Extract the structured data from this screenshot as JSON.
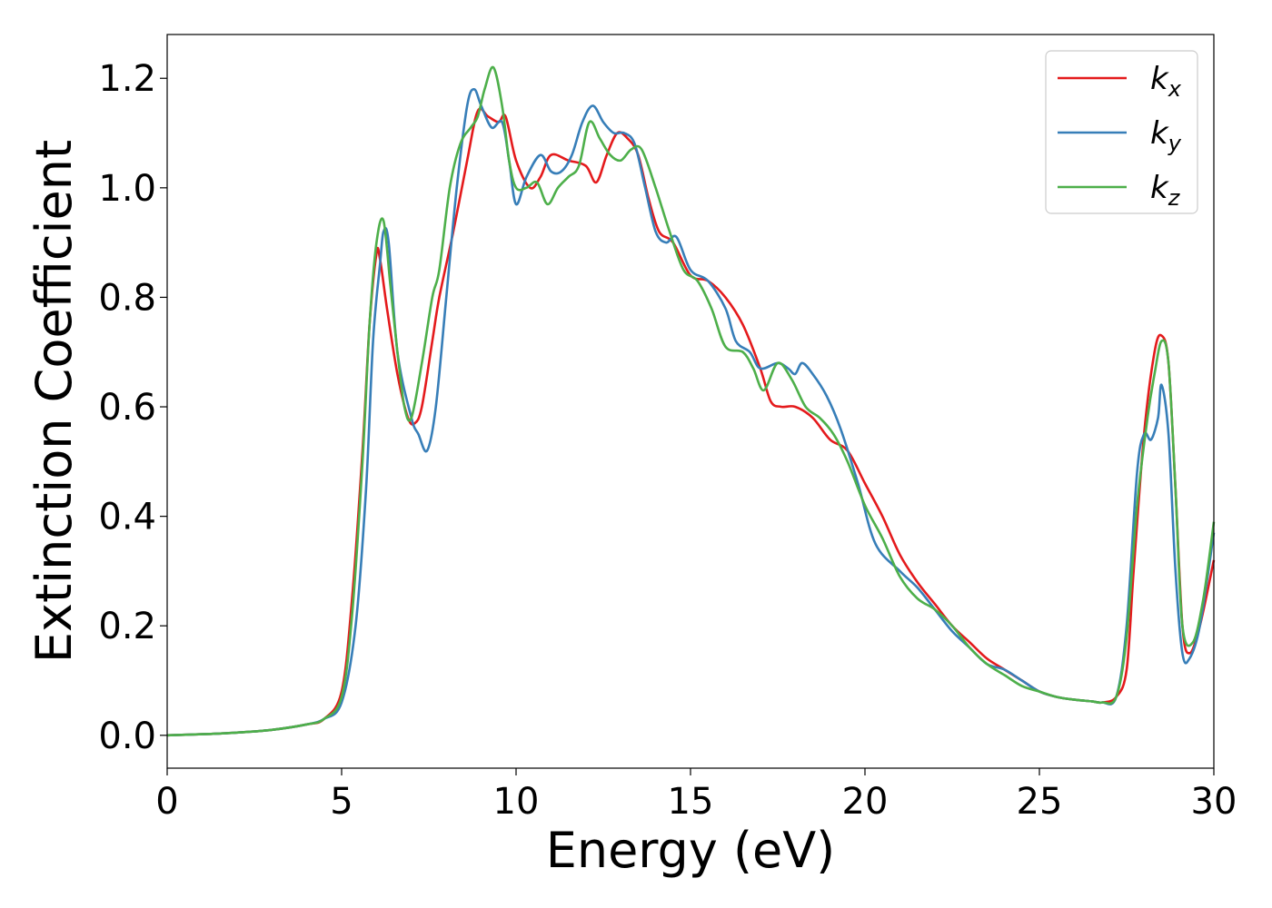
{
  "chart_data": {
    "type": "line",
    "xlabel": "Energy (eV)",
    "ylabel": "Extinction Coefficient",
    "xlim": [
      0,
      30
    ],
    "ylim": [
      -0.06,
      1.28
    ],
    "xticks": [
      0,
      5,
      10,
      15,
      20,
      25,
      30
    ],
    "yticks": [
      0.0,
      0.2,
      0.4,
      0.6,
      0.8,
      1.0,
      1.2
    ],
    "xtick_labels": [
      "0",
      "5",
      "10",
      "15",
      "20",
      "25",
      "30"
    ],
    "ytick_labels": [
      "0.0",
      "0.2",
      "0.4",
      "0.6",
      "0.8",
      "1.0",
      "1.2"
    ],
    "grid": false,
    "legend_position": "top-right",
    "series": [
      {
        "name": "k_x",
        "label_base": "k",
        "label_sub": "x",
        "color": "#e41a1c",
        "x": [
          0,
          1,
          2,
          3,
          4,
          4.5,
          5.0,
          5.3,
          5.6,
          5.8,
          6.0,
          6.1,
          6.3,
          6.6,
          6.9,
          7.1,
          7.3,
          7.6,
          7.8,
          8.2,
          8.6,
          8.9,
          9.2,
          9.5,
          9.7,
          10.0,
          10.4,
          10.7,
          11.0,
          11.5,
          12.0,
          12.3,
          12.6,
          12.9,
          13.2,
          13.5,
          13.8,
          14.1,
          14.5,
          15.0,
          15.5,
          16.0,
          16.5,
          17.0,
          17.3,
          17.6,
          18.0,
          18.5,
          19.0,
          19.5,
          20.0,
          20.5,
          21.0,
          21.5,
          22.0,
          22.5,
          23.0,
          23.5,
          24.0,
          24.5,
          25.0,
          25.5,
          26.0,
          26.5,
          26.8,
          27.2,
          27.5,
          27.7,
          28.0,
          28.3,
          28.5,
          28.7,
          28.9,
          29.1,
          29.3,
          29.6,
          30.0
        ],
        "values": [
          0.0,
          0.002,
          0.005,
          0.01,
          0.02,
          0.03,
          0.08,
          0.25,
          0.52,
          0.75,
          0.88,
          0.87,
          0.78,
          0.66,
          0.58,
          0.57,
          0.6,
          0.72,
          0.8,
          0.92,
          1.05,
          1.14,
          1.13,
          1.12,
          1.13,
          1.05,
          1.0,
          1.02,
          1.06,
          1.05,
          1.04,
          1.01,
          1.06,
          1.1,
          1.09,
          1.06,
          0.98,
          0.92,
          0.9,
          0.84,
          0.83,
          0.8,
          0.75,
          0.67,
          0.61,
          0.6,
          0.6,
          0.58,
          0.54,
          0.52,
          0.46,
          0.4,
          0.33,
          0.28,
          0.24,
          0.2,
          0.17,
          0.14,
          0.12,
          0.1,
          0.08,
          0.07,
          0.065,
          0.062,
          0.06,
          0.07,
          0.12,
          0.3,
          0.55,
          0.7,
          0.73,
          0.68,
          0.45,
          0.2,
          0.15,
          0.2,
          0.32
        ]
      },
      {
        "name": "k_y",
        "label_base": "k",
        "label_sub": "y",
        "color": "#377eb8",
        "x": [
          0,
          1,
          2,
          3,
          4,
          4.5,
          5.0,
          5.4,
          5.7,
          5.9,
          6.1,
          6.2,
          6.35,
          6.6,
          7.0,
          7.2,
          7.45,
          7.7,
          8.0,
          8.3,
          8.6,
          8.8,
          9.0,
          9.3,
          9.6,
          9.8,
          10.0,
          10.3,
          10.7,
          11.0,
          11.3,
          11.6,
          11.9,
          12.2,
          12.5,
          12.8,
          13.1,
          13.4,
          13.7,
          14.0,
          14.3,
          14.6,
          15.0,
          15.5,
          16.0,
          16.3,
          16.7,
          17.0,
          17.5,
          17.8,
          18.0,
          18.2,
          18.5,
          18.9,
          19.3,
          19.8,
          20.3,
          21.0,
          21.5,
          22.0,
          22.5,
          23.0,
          23.5,
          24.0,
          24.5,
          25.0,
          25.5,
          26.0,
          26.5,
          26.8,
          27.2,
          27.5,
          27.8,
          28.0,
          28.2,
          28.4,
          28.5,
          28.7,
          28.9,
          29.1,
          29.3,
          29.6,
          30.0
        ],
        "values": [
          0.0,
          0.002,
          0.005,
          0.01,
          0.02,
          0.03,
          0.06,
          0.2,
          0.45,
          0.72,
          0.86,
          0.92,
          0.9,
          0.7,
          0.58,
          0.55,
          0.52,
          0.6,
          0.8,
          1.0,
          1.15,
          1.18,
          1.15,
          1.11,
          1.12,
          1.05,
          0.97,
          1.02,
          1.06,
          1.03,
          1.03,
          1.06,
          1.12,
          1.15,
          1.12,
          1.1,
          1.1,
          1.08,
          1.0,
          0.92,
          0.9,
          0.91,
          0.85,
          0.83,
          0.78,
          0.72,
          0.7,
          0.67,
          0.68,
          0.67,
          0.66,
          0.68,
          0.66,
          0.62,
          0.56,
          0.46,
          0.35,
          0.3,
          0.27,
          0.23,
          0.19,
          0.16,
          0.13,
          0.12,
          0.1,
          0.08,
          0.07,
          0.065,
          0.062,
          0.06,
          0.07,
          0.2,
          0.48,
          0.55,
          0.54,
          0.58,
          0.64,
          0.55,
          0.3,
          0.15,
          0.14,
          0.2,
          0.37
        ]
      },
      {
        "name": "k_z",
        "label_base": "k",
        "label_sub": "z",
        "color": "#4daf4a",
        "x": [
          0,
          1,
          2,
          3,
          4,
          4.5,
          5.0,
          5.3,
          5.6,
          5.8,
          6.0,
          6.2,
          6.4,
          6.6,
          6.8,
          7.0,
          7.3,
          7.6,
          7.8,
          8.1,
          8.4,
          8.7,
          8.9,
          9.1,
          9.35,
          9.6,
          9.8,
          10.0,
          10.3,
          10.6,
          10.9,
          11.2,
          11.5,
          11.8,
          12.1,
          12.4,
          12.7,
          13.0,
          13.3,
          13.6,
          14.0,
          14.4,
          14.8,
          15.2,
          15.6,
          16.0,
          16.5,
          16.8,
          17.1,
          17.5,
          17.9,
          18.3,
          18.7,
          19.1,
          19.5,
          20.0,
          20.5,
          21.0,
          21.5,
          22.0,
          22.5,
          23.0,
          23.5,
          24.0,
          24.5,
          25.0,
          25.5,
          26.0,
          26.5,
          26.8,
          27.2,
          27.5,
          27.8,
          28.1,
          28.3,
          28.5,
          28.7,
          28.9,
          29.1,
          29.4,
          29.7,
          30.0
        ],
        "values": [
          0.0,
          0.002,
          0.005,
          0.01,
          0.02,
          0.03,
          0.07,
          0.22,
          0.5,
          0.75,
          0.9,
          0.94,
          0.82,
          0.7,
          0.6,
          0.58,
          0.68,
          0.8,
          0.85,
          1.0,
          1.08,
          1.11,
          1.13,
          1.18,
          1.22,
          1.15,
          1.05,
          1.0,
          1.0,
          1.01,
          0.97,
          1.0,
          1.02,
          1.04,
          1.12,
          1.09,
          1.06,
          1.05,
          1.07,
          1.07,
          1.0,
          0.92,
          0.85,
          0.83,
          0.78,
          0.71,
          0.7,
          0.67,
          0.63,
          0.68,
          0.65,
          0.6,
          0.58,
          0.55,
          0.5,
          0.42,
          0.36,
          0.29,
          0.25,
          0.23,
          0.2,
          0.16,
          0.13,
          0.11,
          0.09,
          0.08,
          0.07,
          0.065,
          0.062,
          0.06,
          0.07,
          0.18,
          0.42,
          0.58,
          0.66,
          0.72,
          0.68,
          0.45,
          0.2,
          0.17,
          0.25,
          0.39
        ]
      }
    ]
  }
}
